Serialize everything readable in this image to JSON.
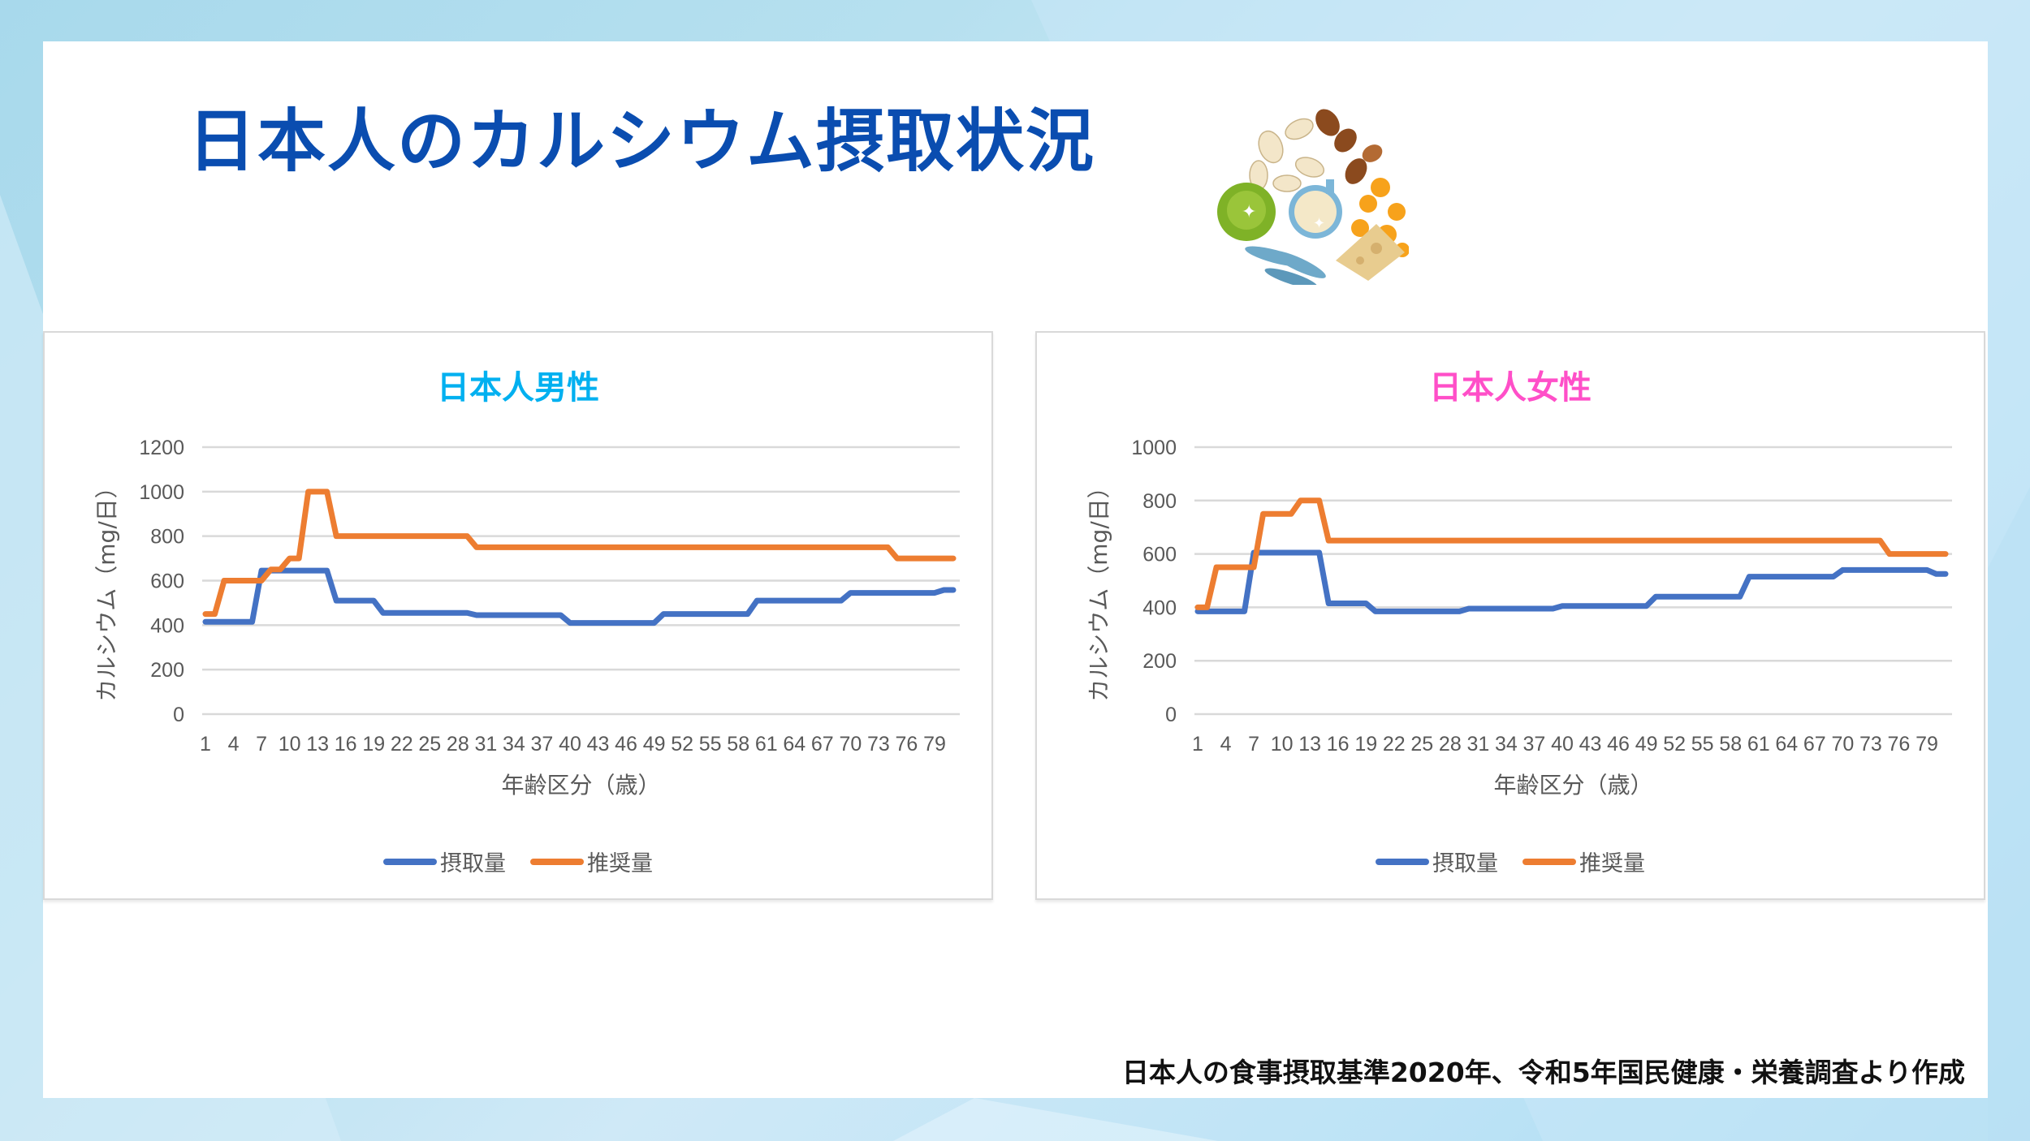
{
  "slide": {
    "title": "日本人のカルシウム摂取状況",
    "footer_note": "日本人の食事摂取基準2020年、令和5年国民健康・栄養調査より作成",
    "illustration": "calcium-rich-foods-illustration",
    "colors": {
      "title": "#0a4db0",
      "male_title": "#00b0f0",
      "female_title": "#ff4fc8",
      "intake": "#4472c4",
      "recommended": "#ed7d31",
      "gridline": "#d9d9d9",
      "axis_text": "#595959"
    }
  },
  "chart_data": [
    {
      "id": "male",
      "type": "line",
      "title": "日本人男性",
      "xlabel": "年齢区分（歳）",
      "ylabel": "カルシウム（mg/日）",
      "ylim": [
        0,
        1200
      ],
      "yticks": [
        0,
        200,
        400,
        600,
        800,
        1000,
        1200
      ],
      "x_tick_labels": [
        "1",
        "4",
        "7",
        "10",
        "13",
        "16",
        "19",
        "22",
        "25",
        "28",
        "31",
        "34",
        "37",
        "40",
        "43",
        "46",
        "49",
        "52",
        "55",
        "58",
        "61",
        "64",
        "67",
        "70",
        "73",
        "76",
        "79"
      ],
      "x": [
        1,
        81
      ],
      "grid": true,
      "legend_position": "bottom",
      "series": [
        {
          "name": "摂取量",
          "segments": [
            {
              "from": 1,
              "to": 6,
              "value": 415
            },
            {
              "from": 7,
              "to": 14,
              "value": 645
            },
            {
              "from": 15,
              "to": 19,
              "value": 510
            },
            {
              "from": 20,
              "to": 29,
              "value": 455
            },
            {
              "from": 30,
              "to": 39,
              "value": 445
            },
            {
              "from": 40,
              "to": 49,
              "value": 410
            },
            {
              "from": 50,
              "to": 59,
              "value": 450
            },
            {
              "from": 60,
              "to": 69,
              "value": 510
            },
            {
              "from": 70,
              "to": 79,
              "value": 545
            },
            {
              "from": 80,
              "to": 81,
              "value": 558
            }
          ]
        },
        {
          "name": "推奨量",
          "segments": [
            {
              "from": 1,
              "to": 2,
              "value": 450
            },
            {
              "from": 3,
              "to": 7,
              "value": 600
            },
            {
              "from": 8,
              "to": 9,
              "value": 650
            },
            {
              "from": 10,
              "to": 11,
              "value": 700
            },
            {
              "from": 12,
              "to": 14,
              "value": 1000
            },
            {
              "from": 15,
              "to": 29,
              "value": 800
            },
            {
              "from": 30,
              "to": 74,
              "value": 750
            },
            {
              "from": 75,
              "to": 81,
              "value": 700
            }
          ]
        }
      ]
    },
    {
      "id": "female",
      "type": "line",
      "title": "日本人女性",
      "xlabel": "年齢区分（歳）",
      "ylabel": "カルシウム（mg/日）",
      "ylim": [
        0,
        1000
      ],
      "yticks": [
        0,
        200,
        400,
        600,
        800,
        1000
      ],
      "x_tick_labels": [
        "1",
        "4",
        "7",
        "10",
        "13",
        "16",
        "19",
        "22",
        "25",
        "28",
        "31",
        "34",
        "37",
        "40",
        "43",
        "46",
        "49",
        "52",
        "55",
        "58",
        "61",
        "64",
        "67",
        "70",
        "73",
        "76",
        "79"
      ],
      "x": [
        1,
        81
      ],
      "grid": true,
      "legend_position": "bottom",
      "series": [
        {
          "name": "摂取量",
          "segments": [
            {
              "from": 1,
              "to": 6,
              "value": 385
            },
            {
              "from": 7,
              "to": 14,
              "value": 605
            },
            {
              "from": 15,
              "to": 19,
              "value": 415
            },
            {
              "from": 20,
              "to": 29,
              "value": 385
            },
            {
              "from": 30,
              "to": 39,
              "value": 395
            },
            {
              "from": 40,
              "to": 49,
              "value": 405
            },
            {
              "from": 50,
              "to": 59,
              "value": 440
            },
            {
              "from": 60,
              "to": 69,
              "value": 515
            },
            {
              "from": 70,
              "to": 79,
              "value": 540
            },
            {
              "from": 80,
              "to": 81,
              "value": 525
            }
          ]
        },
        {
          "name": "推奨量",
          "segments": [
            {
              "from": 1,
              "to": 2,
              "value": 400
            },
            {
              "from": 3,
              "to": 7,
              "value": 550
            },
            {
              "from": 8,
              "to": 11,
              "value": 750
            },
            {
              "from": 12,
              "to": 14,
              "value": 800
            },
            {
              "from": 15,
              "to": 74,
              "value": 650
            },
            {
              "from": 75,
              "to": 81,
              "value": 600
            }
          ]
        }
      ]
    }
  ]
}
